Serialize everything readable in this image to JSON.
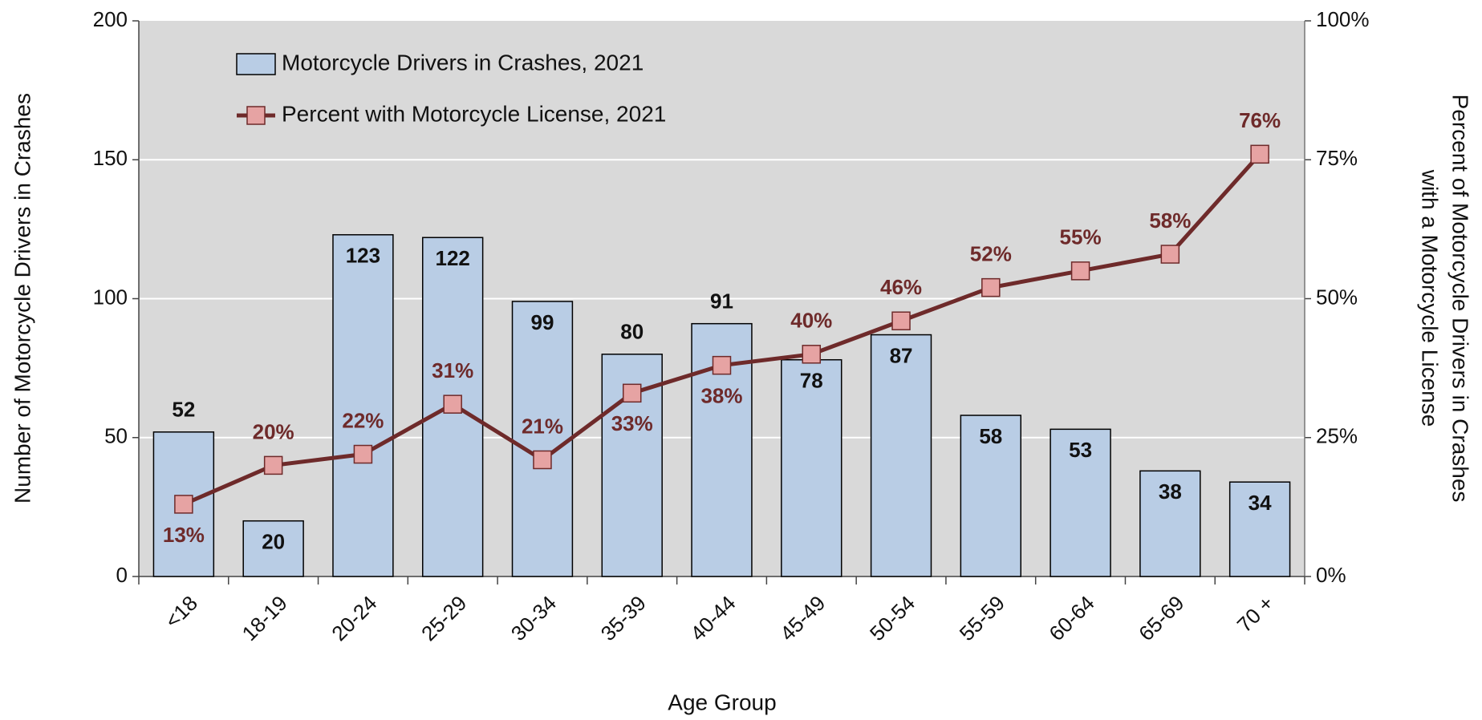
{
  "chart_data": {
    "type": "bar",
    "x_label": "Age Group",
    "y_label": "Number of Motorcycle Drivers in Crashes",
    "y2_label": [
      "Percent of Motorcycle Drivers in Crashes",
      "with a Motorcycle License"
    ],
    "categories": [
      "<18",
      "18-19",
      "20-24",
      "25-29",
      "30-34",
      "35-39",
      "40-44",
      "45-49",
      "50-54",
      "55-59",
      "60-64",
      "65-69",
      "70 +"
    ],
    "series": [
      {
        "name": "Motorcycle Drivers in Crashes, 2021",
        "type": "bar",
        "color": "#b9cde5",
        "values": [
          52,
          20,
          123,
          122,
          99,
          80,
          91,
          78,
          87,
          58,
          53,
          38,
          34
        ]
      },
      {
        "name": "Percent with Motorcycle License, 2021",
        "type": "line",
        "axis": "y2",
        "color": "#6e2a2a",
        "marker_color": "#e6a3a3",
        "values": [
          13,
          20,
          22,
          31,
          21,
          33,
          38,
          40,
          46,
          52,
          55,
          58,
          76
        ],
        "value_labels": [
          "13%",
          "20%",
          "22%",
          "31%",
          "21%",
          "33%",
          "38%",
          "40%",
          "46%",
          "52%",
          "55%",
          "58%",
          "76%"
        ]
      }
    ],
    "ylim": [
      0,
      200
    ],
    "yticks": [
      0,
      50,
      100,
      150,
      200
    ],
    "y2lim": [
      0,
      100
    ],
    "y2ticks": [
      {
        "value": 0,
        "label": "0%"
      },
      {
        "value": 25,
        "label": "25%"
      },
      {
        "value": 50,
        "label": "50%"
      },
      {
        "value": 75,
        "label": "75%"
      },
      {
        "value": 100,
        "label": "100%"
      }
    ],
    "grid": true,
    "plot_background": "#d9d9d9",
    "legend": "upper left"
  }
}
